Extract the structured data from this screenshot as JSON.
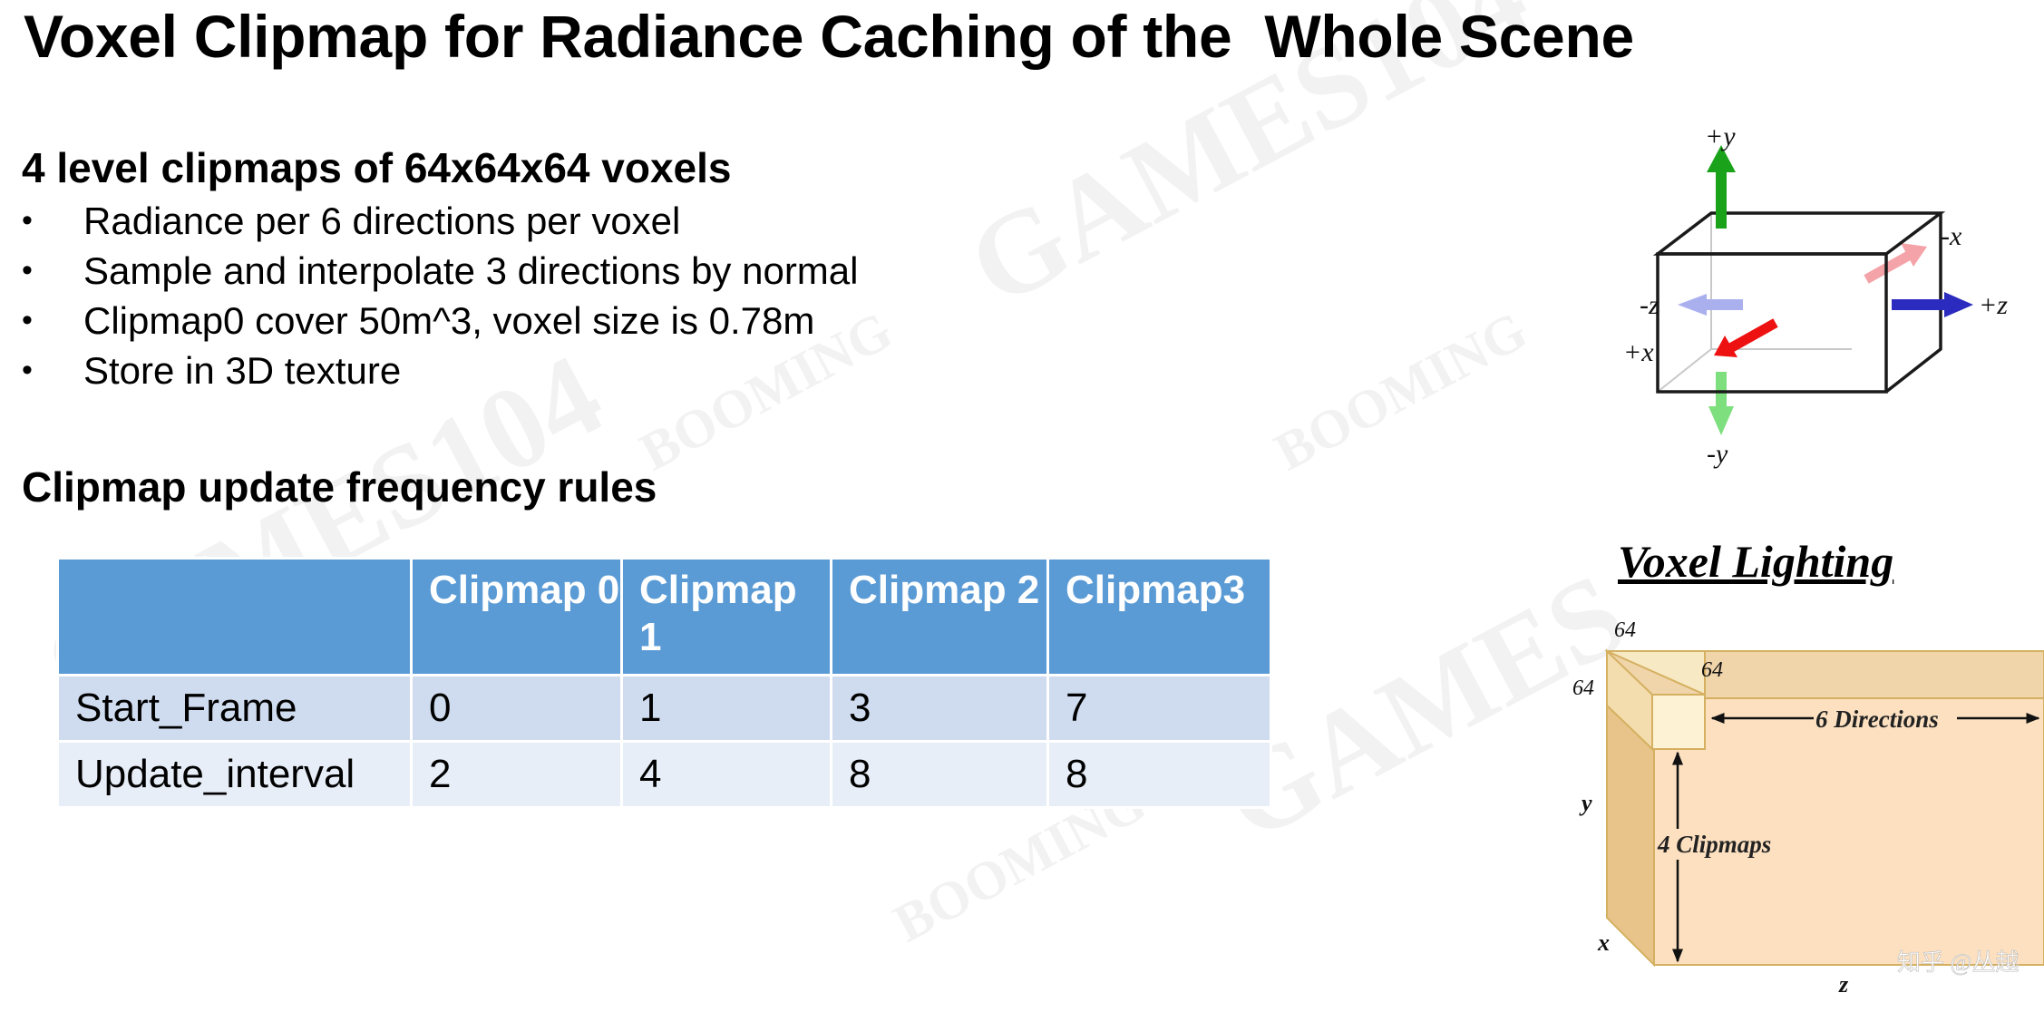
{
  "slide": {
    "title": "Voxel Clipmap for Radiance Caching of the  Whole Scene",
    "section1_heading": "4 level clipmaps of 64x64x64 voxels",
    "bullets": [
      "Radiance per 6 directions per voxel",
      "Sample and interpolate 3 directions by normal",
      "Clipmap0 cover 50m^3, voxel size is 0.78m",
      "Store in 3D texture"
    ],
    "section2_heading": "Clipmap update frequency rules"
  },
  "table": {
    "headers": [
      "",
      "Clipmap 0",
      "Clipmap 1",
      "Clipmap 2",
      "Clipmap3"
    ],
    "rows": [
      {
        "label": "Start_Frame",
        "values": [
          "0",
          "1",
          "3",
          "7"
        ]
      },
      {
        "label": "Update_interval",
        "values": [
          "2",
          "4",
          "8",
          "8"
        ]
      }
    ],
    "header_color": "#5b9bd5",
    "row_colors": [
      "#cfdbef",
      "#e8eef8"
    ]
  },
  "cube_diagram": {
    "labels": {
      "py": "+y",
      "ny": "-y",
      "px": "+x",
      "nx": "-x",
      "pz": "+z",
      "nz": "-z"
    },
    "arrow_colors": {
      "py": "#1aa31a",
      "ny": "#7ddf7d",
      "px": "#ee1111",
      "nx": "#f4a3a8",
      "pz": "#2b2bbf",
      "nz": "#aab0ee"
    }
  },
  "voxel_lighting": {
    "title": "Voxel Lighting",
    "label_64_top": "64",
    "label_64_left": "64",
    "label_64_inner": "64",
    "directions": "6 Directions",
    "clipmaps": "4 Clipmaps",
    "axis_y": "y",
    "axis_x": "x",
    "axis_z": "z",
    "watermark": "知乎 @丛越",
    "fill_color": "#fce0c0",
    "edge_color": "#d4b060"
  }
}
